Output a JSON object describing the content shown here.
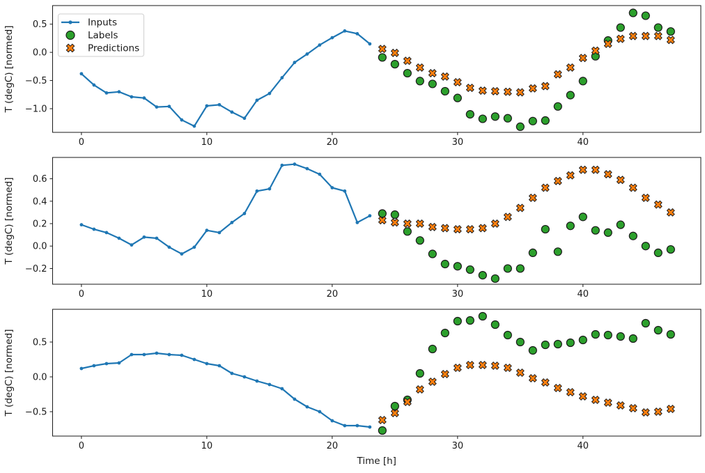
{
  "figure": {
    "background": "#ffffff",
    "text_color": "#1a1a1a",
    "xlabel": "Time [h]",
    "ylabel": "T (degC) [normed]",
    "legend": {
      "position": "upper-left",
      "items": [
        {
          "label": "Inputs",
          "marker": "line-dot",
          "color": "#1f77b4",
          "edge": "#1f77b4"
        },
        {
          "label": "Labels",
          "marker": "circle",
          "color": "#2ca02c",
          "edge": "#000000"
        },
        {
          "label": "Predictions",
          "marker": "X",
          "color": "#ff7f0e",
          "edge": "#000000"
        }
      ]
    }
  },
  "chart_data": [
    {
      "type": "line",
      "subtype": "line+scatter",
      "title": "",
      "xlabel": "",
      "ylabel": "T (degC) [normed]",
      "xlim": [
        -2.3,
        49.4
      ],
      "ylim": [
        -1.42,
        0.83
      ],
      "x_ticks": [
        0,
        10,
        20,
        30,
        40
      ],
      "y_ticks": [
        0.5,
        0.0,
        -0.5,
        -1.0
      ],
      "grid": false,
      "series": [
        {
          "name": "Inputs",
          "type": "line",
          "marker": "dot",
          "color": "#1f77b4",
          "x": [
            0,
            1,
            2,
            3,
            4,
            5,
            6,
            7,
            8,
            9,
            10,
            11,
            12,
            13,
            14,
            15,
            16,
            17,
            18,
            19,
            20,
            21,
            22,
            23
          ],
          "y": [
            -0.38,
            -0.58,
            -0.72,
            -0.7,
            -0.79,
            -0.81,
            -0.97,
            -0.96,
            -1.2,
            -1.31,
            -0.95,
            -0.93,
            -1.06,
            -1.17,
            -0.85,
            -0.73,
            -0.45,
            -0.18,
            -0.03,
            0.13,
            0.26,
            0.38,
            0.33,
            0.15
          ]
        },
        {
          "name": "Labels",
          "type": "scatter",
          "marker": "circle",
          "color": "#2ca02c",
          "x": [
            24,
            25,
            26,
            27,
            28,
            29,
            30,
            31,
            32,
            33,
            34,
            35,
            36,
            37,
            38,
            39,
            40,
            41,
            42,
            43,
            44,
            45,
            46,
            47
          ],
          "y": [
            -0.09,
            -0.21,
            -0.37,
            -0.51,
            -0.56,
            -0.69,
            -0.81,
            -1.1,
            -1.18,
            -1.14,
            -1.17,
            -1.32,
            -1.22,
            -1.21,
            -0.96,
            -0.76,
            -0.51,
            -0.07,
            0.21,
            0.44,
            0.7,
            0.65,
            0.44,
            0.37
          ]
        },
        {
          "name": "Predictions",
          "type": "scatter",
          "marker": "X",
          "color": "#ff7f0e",
          "x": [
            24,
            25,
            26,
            27,
            28,
            29,
            30,
            31,
            32,
            33,
            34,
            35,
            36,
            37,
            38,
            39,
            40,
            41,
            42,
            43,
            44,
            45,
            46,
            47
          ],
          "y": [
            0.06,
            -0.01,
            -0.15,
            -0.27,
            -0.37,
            -0.43,
            -0.53,
            -0.63,
            -0.68,
            -0.69,
            -0.7,
            -0.71,
            -0.64,
            -0.6,
            -0.39,
            -0.27,
            -0.1,
            0.03,
            0.15,
            0.24,
            0.29,
            0.29,
            0.29,
            0.22
          ]
        }
      ]
    },
    {
      "type": "line",
      "subtype": "line+scatter",
      "title": "",
      "xlabel": "",
      "ylabel": "T (degC) [normed]",
      "xlim": [
        -2.3,
        49.4
      ],
      "ylim": [
        -0.34,
        0.79
      ],
      "x_ticks": [
        0,
        10,
        20,
        30,
        40
      ],
      "y_ticks": [
        0.6,
        0.4,
        0.2,
        0.0,
        -0.2
      ],
      "grid": false,
      "series": [
        {
          "name": "Inputs",
          "type": "line",
          "marker": "dot",
          "color": "#1f77b4",
          "x": [
            0,
            1,
            2,
            3,
            4,
            5,
            6,
            7,
            8,
            9,
            10,
            11,
            12,
            13,
            14,
            15,
            16,
            17,
            18,
            19,
            20,
            21,
            22,
            23
          ],
          "y": [
            0.19,
            0.15,
            0.12,
            0.07,
            0.01,
            0.08,
            0.07,
            -0.01,
            -0.07,
            -0.01,
            0.14,
            0.12,
            0.21,
            0.29,
            0.49,
            0.51,
            0.72,
            0.73,
            0.69,
            0.64,
            0.52,
            0.49,
            0.21,
            0.27
          ]
        },
        {
          "name": "Labels",
          "type": "scatter",
          "marker": "circle",
          "color": "#2ca02c",
          "x": [
            24,
            25,
            26,
            27,
            28,
            29,
            30,
            31,
            32,
            33,
            34,
            35,
            36,
            37,
            38,
            39,
            40,
            41,
            42,
            43,
            44,
            45,
            46,
            47
          ],
          "y": [
            0.29,
            0.28,
            0.13,
            0.05,
            -0.07,
            -0.16,
            -0.18,
            -0.21,
            -0.26,
            -0.29,
            -0.2,
            -0.2,
            -0.06,
            0.15,
            -0.05,
            0.18,
            0.26,
            0.14,
            0.12,
            0.19,
            0.09,
            0.0,
            -0.06,
            -0.03
          ]
        },
        {
          "name": "Predictions",
          "type": "scatter",
          "marker": "X",
          "color": "#ff7f0e",
          "x": [
            24,
            25,
            26,
            27,
            28,
            29,
            30,
            31,
            32,
            33,
            34,
            35,
            36,
            37,
            38,
            39,
            40,
            41,
            42,
            43,
            44,
            45,
            46,
            47
          ],
          "y": [
            0.23,
            0.21,
            0.2,
            0.2,
            0.17,
            0.16,
            0.15,
            0.15,
            0.16,
            0.2,
            0.26,
            0.34,
            0.43,
            0.52,
            0.58,
            0.63,
            0.68,
            0.68,
            0.64,
            0.59,
            0.52,
            0.43,
            0.37,
            0.3
          ]
        }
      ]
    },
    {
      "type": "line",
      "subtype": "line+scatter",
      "title": "",
      "xlabel": "Time [h]",
      "ylabel": "T (degC) [normed]",
      "xlim": [
        -2.3,
        49.4
      ],
      "ylim": [
        -0.85,
        0.97
      ],
      "x_ticks": [
        0,
        10,
        20,
        30,
        40
      ],
      "y_ticks": [
        0.5,
        0.0,
        -0.5
      ],
      "grid": false,
      "series": [
        {
          "name": "Inputs",
          "type": "line",
          "marker": "dot",
          "color": "#1f77b4",
          "x": [
            0,
            1,
            2,
            3,
            4,
            5,
            6,
            7,
            8,
            9,
            10,
            11,
            12,
            13,
            14,
            15,
            16,
            17,
            18,
            19,
            20,
            21,
            22,
            23
          ],
          "y": [
            0.12,
            0.16,
            0.19,
            0.2,
            0.32,
            0.32,
            0.34,
            0.32,
            0.31,
            0.25,
            0.19,
            0.16,
            0.05,
            0.0,
            -0.06,
            -0.11,
            -0.17,
            -0.32,
            -0.43,
            -0.5,
            -0.63,
            -0.7,
            -0.7,
            -0.72
          ]
        },
        {
          "name": "Labels",
          "type": "scatter",
          "marker": "circle",
          "color": "#2ca02c",
          "x": [
            24,
            25,
            26,
            27,
            28,
            29,
            30,
            31,
            32,
            33,
            34,
            35,
            36,
            37,
            38,
            39,
            40,
            41,
            42,
            43,
            44,
            45,
            46,
            47
          ],
          "y": [
            -0.77,
            -0.42,
            -0.33,
            0.05,
            0.4,
            0.63,
            0.8,
            0.81,
            0.87,
            0.75,
            0.6,
            0.5,
            0.38,
            0.46,
            0.47,
            0.49,
            0.53,
            0.61,
            0.6,
            0.58,
            0.55,
            0.77,
            0.67,
            0.61
          ]
        },
        {
          "name": "Predictions",
          "type": "scatter",
          "marker": "X",
          "color": "#ff7f0e",
          "x": [
            24,
            25,
            26,
            27,
            28,
            29,
            30,
            31,
            32,
            33,
            34,
            35,
            36,
            37,
            38,
            39,
            40,
            41,
            42,
            43,
            44,
            45,
            46,
            47
          ],
          "y": [
            -0.62,
            -0.52,
            -0.36,
            -0.18,
            -0.07,
            0.04,
            0.13,
            0.17,
            0.17,
            0.16,
            0.13,
            0.06,
            -0.02,
            -0.08,
            -0.16,
            -0.22,
            -0.28,
            -0.33,
            -0.37,
            -0.41,
            -0.45,
            -0.51,
            -0.5,
            -0.46
          ]
        }
      ]
    }
  ]
}
